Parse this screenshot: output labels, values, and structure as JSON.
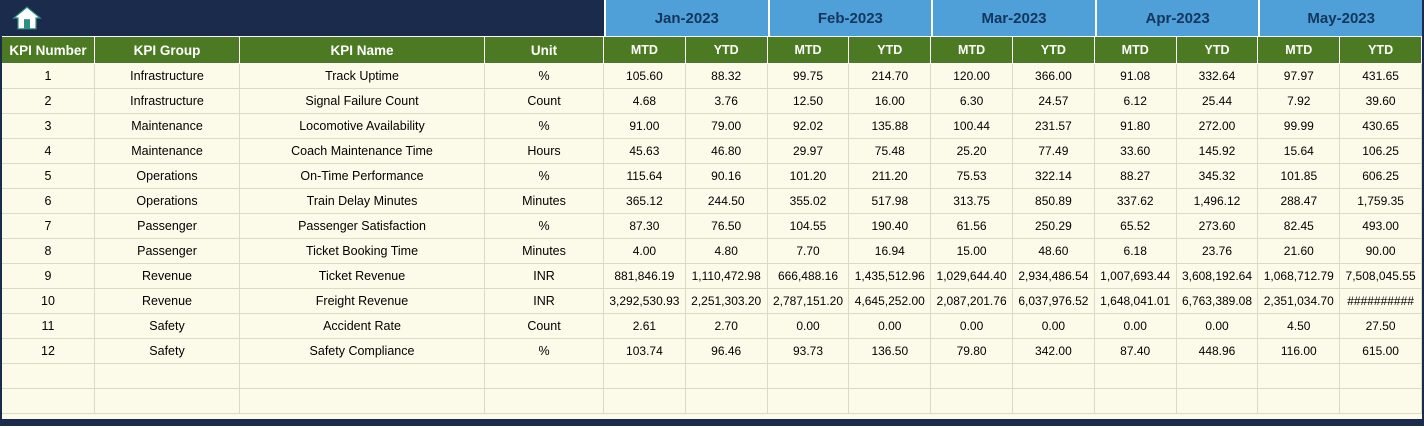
{
  "header": {
    "home_icon": "home",
    "months": [
      "Jan-2023",
      "Feb-2023",
      "Mar-2023",
      "Apr-2023",
      "May-2023"
    ],
    "sub_columns": [
      "MTD",
      "YTD"
    ],
    "kpi_columns": [
      "KPI Number",
      "KPI Group",
      "KPI Name",
      "Unit"
    ]
  },
  "rows": [
    {
      "kpi_number": "1",
      "kpi_group": "Infrastructure",
      "kpi_name": "Track Uptime",
      "unit": "%",
      "values": [
        "105.60",
        "88.32",
        "99.75",
        "214.70",
        "120.00",
        "366.00",
        "91.08",
        "332.64",
        "97.97",
        "431.65"
      ]
    },
    {
      "kpi_number": "2",
      "kpi_group": "Infrastructure",
      "kpi_name": "Signal Failure Count",
      "unit": "Count",
      "values": [
        "4.68",
        "3.76",
        "12.50",
        "16.00",
        "6.30",
        "24.57",
        "6.12",
        "25.44",
        "7.92",
        "39.60"
      ]
    },
    {
      "kpi_number": "3",
      "kpi_group": "Maintenance",
      "kpi_name": "Locomotive Availability",
      "unit": "%",
      "values": [
        "91.00",
        "79.00",
        "92.02",
        "135.88",
        "100.44",
        "231.57",
        "91.80",
        "272.00",
        "99.99",
        "430.65"
      ]
    },
    {
      "kpi_number": "4",
      "kpi_group": "Maintenance",
      "kpi_name": "Coach Maintenance Time",
      "unit": "Hours",
      "values": [
        "45.63",
        "46.80",
        "29.97",
        "75.48",
        "25.20",
        "77.49",
        "33.60",
        "145.92",
        "15.64",
        "106.25"
      ]
    },
    {
      "kpi_number": "5",
      "kpi_group": "Operations",
      "kpi_name": "On-Time Performance",
      "unit": "%",
      "values": [
        "115.64",
        "90.16",
        "101.20",
        "211.20",
        "75.53",
        "322.14",
        "88.27",
        "345.32",
        "101.85",
        "606.25"
      ]
    },
    {
      "kpi_number": "6",
      "kpi_group": "Operations",
      "kpi_name": "Train Delay Minutes",
      "unit": "Minutes",
      "values": [
        "365.12",
        "244.50",
        "355.02",
        "517.98",
        "313.75",
        "850.89",
        "337.62",
        "1,496.12",
        "288.47",
        "1,759.35"
      ]
    },
    {
      "kpi_number": "7",
      "kpi_group": "Passenger",
      "kpi_name": "Passenger Satisfaction",
      "unit": "%",
      "values": [
        "87.30",
        "76.50",
        "104.55",
        "190.40",
        "61.56",
        "250.29",
        "65.52",
        "273.60",
        "82.45",
        "493.00"
      ]
    },
    {
      "kpi_number": "8",
      "kpi_group": "Passenger",
      "kpi_name": "Ticket Booking Time",
      "unit": "Minutes",
      "values": [
        "4.00",
        "4.80",
        "7.70",
        "16.94",
        "15.00",
        "48.60",
        "6.18",
        "23.76",
        "21.60",
        "90.00"
      ]
    },
    {
      "kpi_number": "9",
      "kpi_group": "Revenue",
      "kpi_name": "Ticket Revenue",
      "unit": "INR",
      "values": [
        "881,846.19",
        "1,110,472.98",
        "666,488.16",
        "1,435,512.96",
        "1,029,644.40",
        "2,934,486.54",
        "1,007,693.44",
        "3,608,192.64",
        "1,068,712.79",
        "7,508,045.55"
      ]
    },
    {
      "kpi_number": "10",
      "kpi_group": "Revenue",
      "kpi_name": "Freight Revenue",
      "unit": "INR",
      "values": [
        "3,292,530.93",
        "2,251,303.20",
        "2,787,151.20",
        "4,645,252.00",
        "2,087,201.76",
        "6,037,976.52",
        "1,648,041.01",
        "6,763,389.08",
        "2,351,034.70",
        "##########"
      ]
    },
    {
      "kpi_number": "11",
      "kpi_group": "Safety",
      "kpi_name": "Accident Rate",
      "unit": "Count",
      "values": [
        "2.61",
        "2.70",
        "0.00",
        "0.00",
        "0.00",
        "0.00",
        "0.00",
        "0.00",
        "4.50",
        "27.50"
      ]
    },
    {
      "kpi_number": "12",
      "kpi_group": "Safety",
      "kpi_name": "Safety Compliance",
      "unit": "%",
      "values": [
        "103.74",
        "96.46",
        "93.73",
        "136.50",
        "79.80",
        "342.00",
        "87.40",
        "448.96",
        "116.00",
        "615.00"
      ]
    }
  ],
  "empty_row_count": 2,
  "colors": {
    "navy": "#1b2b4b",
    "month_blue": "#4fa0d9",
    "header_green": "#4c7a23",
    "row_cream": "#fcfbea",
    "grid_line": "#d9dcc4",
    "month_text": "#14365c"
  }
}
